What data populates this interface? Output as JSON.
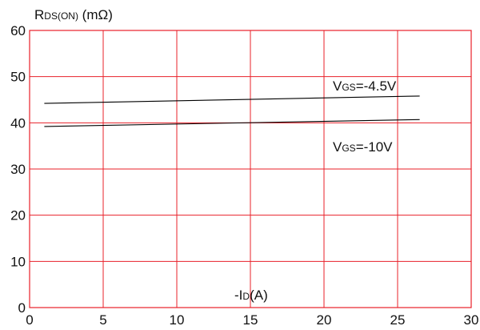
{
  "chart_data": {
    "type": "line",
    "ylabel": {
      "main": "R",
      "sub": "DS(ON)",
      "unit": " (mΩ)"
    },
    "xlabel": {
      "prefix": "-I",
      "sub": "D",
      "suffix": "(A)"
    },
    "xlim": [
      0,
      30
    ],
    "ylim": [
      0,
      60
    ],
    "xticks": [
      "0",
      "5",
      "10",
      "15",
      "20",
      "25",
      "30"
    ],
    "yticks": [
      "0",
      "10",
      "20",
      "30",
      "40",
      "50",
      "60"
    ],
    "grid": true,
    "grid_color": "#e8202a",
    "line_color": "#000000",
    "series": [
      {
        "label": {
          "main": "V",
          "sub": "GS",
          "value": "=-4.5V"
        },
        "x": [
          1,
          26.5
        ],
        "y": [
          44.2,
          45.8
        ]
      },
      {
        "label": {
          "main": "V",
          "sub": "GS",
          "value": "=-10V"
        },
        "x": [
          1,
          26.5
        ],
        "y": [
          39.2,
          40.7
        ]
      }
    ]
  }
}
